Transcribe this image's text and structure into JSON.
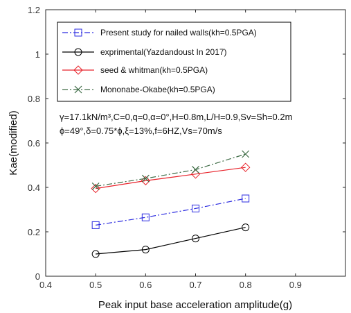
{
  "chart_data": {
    "type": "line",
    "xlabel": "Peak input base acceleration amplitude(g)",
    "ylabel": "Kae(modified)",
    "xlim": [
      0.4,
      1.0
    ],
    "ylim": [
      0,
      1.2
    ],
    "xticks": [
      0.4,
      0.5,
      0.6,
      0.7,
      0.8,
      0.9
    ],
    "xtick_labels": [
      "0.4",
      "0.5",
      "0.6",
      "0.7",
      "0.8",
      "0.9"
    ],
    "yticks": [
      0,
      0.2,
      0.4,
      0.6,
      0.8,
      1,
      1.2
    ],
    "ytick_labels": [
      "0",
      "0.2",
      "0.4",
      "0.6",
      "0.8",
      "1",
      "1.2"
    ],
    "grid": false,
    "legend_position": "top-left",
    "x": [
      0.5,
      0.6,
      0.7,
      0.8
    ],
    "series": [
      {
        "name": "Present study for nailed walls(kh=0.5PGA)",
        "values": [
          0.23,
          0.265,
          0.305,
          0.35
        ],
        "color": "#2a2ae0",
        "marker": "square",
        "dash": "dashdot"
      },
      {
        "name": "exprimental(Yazdandoust In 2017)",
        "values": [
          0.1,
          0.12,
          0.17,
          0.22
        ],
        "color": "#000000",
        "marker": "circle",
        "dash": "solid"
      },
      {
        "name": "seed & whitman(kh=0.5PGA)",
        "values": [
          0.395,
          0.43,
          0.46,
          0.49
        ],
        "color": "#e8222a",
        "marker": "diamond",
        "dash": "solid"
      },
      {
        "name": "Mononabe-Okabe(kh=0.5PGA)",
        "values": [
          0.405,
          0.44,
          0.48,
          0.55
        ],
        "color": "#3d6b45",
        "marker": "x",
        "dash": "dashdot"
      }
    ],
    "annotations": [
      {
        "key": "params_line1",
        "text": "γ=17.1kN/m³,C=0,q=0,α=0°,H=0.8m,L/H=0.9,Sv=Sh=0.2m"
      },
      {
        "key": "params_line2",
        "text": "ϕ=49°,δ=0.75*ϕ,ξ=13%,f=6HZ,Vs=70m/s"
      }
    ]
  }
}
